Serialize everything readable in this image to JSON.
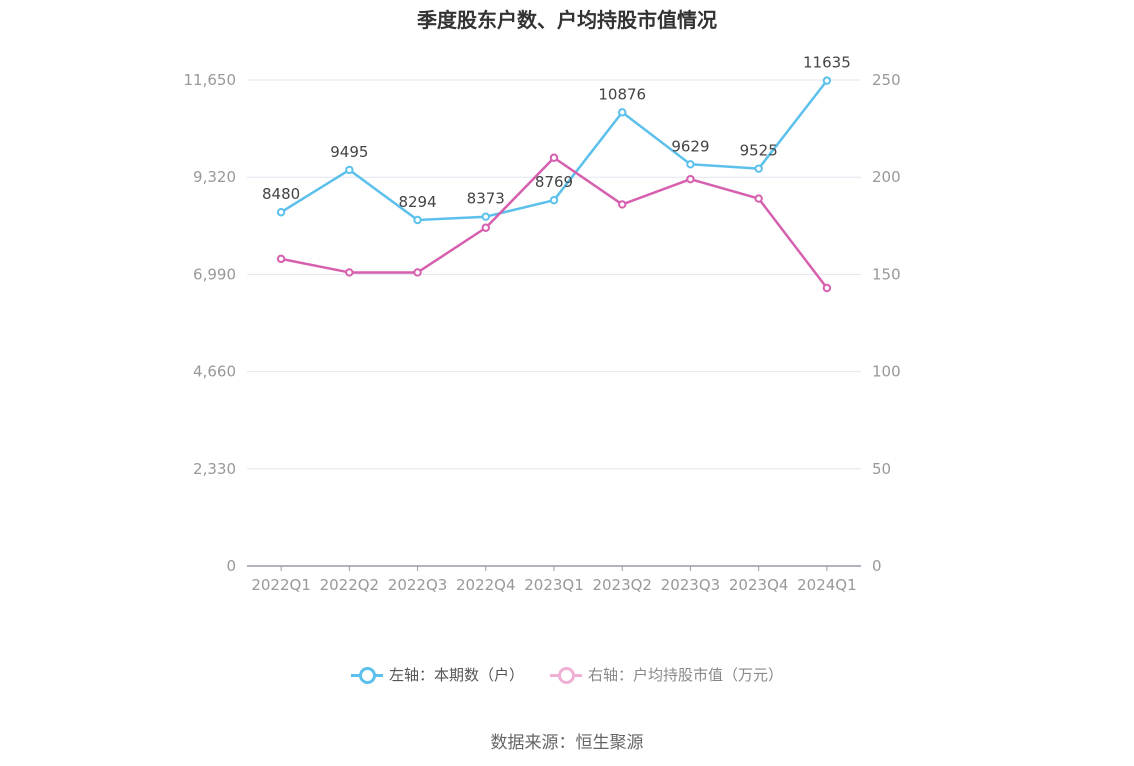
{
  "title": "季度股东户数、户均持股市值情况",
  "source": "数据来源：恒生聚源",
  "colors": {
    "left_series": "#5bc0eb",
    "right_series": "#d65fae",
    "grid": "#e3e6ef",
    "axis": "#9a9aaa",
    "tick_text": "#999999"
  },
  "chart_data": {
    "type": "line",
    "title": "季度股东户数、户均持股市值情况",
    "categories": [
      "2022Q1",
      "2022Q2",
      "2022Q3",
      "2022Q4",
      "2023Q1",
      "2023Q2",
      "2023Q3",
      "2023Q4",
      "2024Q1"
    ],
    "left_axis": {
      "ticks": [
        "0",
        "2,330",
        "4,660",
        "6,990",
        "9,320",
        "11,650"
      ],
      "ylim": [
        0,
        11650
      ]
    },
    "right_axis": {
      "ticks": [
        "0",
        "50",
        "100",
        "150",
        "200",
        "250"
      ],
      "ylim": [
        0,
        250
      ]
    },
    "series": [
      {
        "name": "左轴：本期数（户）",
        "axis": "left",
        "values": [
          8480,
          9495,
          8294,
          8373,
          8769,
          10876,
          9629,
          9525,
          11635
        ],
        "labels": [
          "8480",
          "9495",
          "8294",
          "8373",
          "8769",
          "10876",
          "9629",
          "9525",
          "11635"
        ]
      },
      {
        "name": "右轴：户均持股市值（万元）",
        "axis": "right",
        "values": [
          158,
          151,
          151,
          174,
          210,
          186,
          199,
          189,
          143
        ]
      }
    ],
    "grid": true,
    "legend_position": "bottom"
  }
}
